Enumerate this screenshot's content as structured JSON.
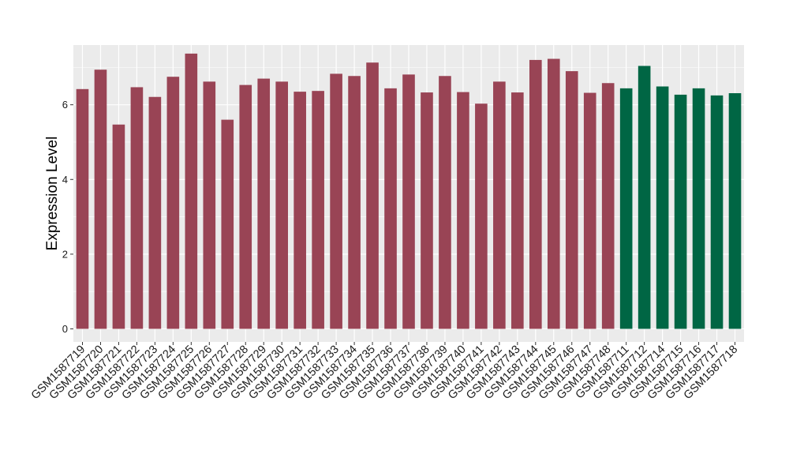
{
  "chart_data": {
    "type": "bar",
    "ylabel": "Expression Level",
    "xlabel": "",
    "ylim": [
      -0.35,
      7.6
    ],
    "yticks": [
      0,
      2,
      4,
      6
    ],
    "ytick_labels": [
      "0",
      "2",
      "4",
      "6"
    ],
    "grid": true,
    "legend": "none",
    "colors": {
      "group_a": "#994455",
      "group_b": "#006644",
      "panel": "#ebebeb",
      "grid": "#ffffff"
    },
    "categories": [
      "GSM1587719",
      "GSM1587720",
      "GSM1587721",
      "GSM1587722",
      "GSM1587723",
      "GSM1587724",
      "GSM1587725",
      "GSM1587726",
      "GSM1587727",
      "GSM1587728",
      "GSM1587729",
      "GSM1587730",
      "GSM1587731",
      "GSM1587732",
      "GSM1587733",
      "GSM1587734",
      "GSM1587735",
      "GSM1587736",
      "GSM1587737",
      "GSM1587738",
      "GSM1587739",
      "GSM1587740",
      "GSM1587741",
      "GSM1587742",
      "GSM1587743",
      "GSM1587744",
      "GSM1587745",
      "GSM1587746",
      "GSM1587747",
      "GSM1587748",
      "GSM1587711",
      "GSM1587712",
      "GSM1587714",
      "GSM1587715",
      "GSM1587716",
      "GSM1587717",
      "GSM1587718"
    ],
    "values": [
      6.42,
      6.94,
      5.47,
      6.47,
      6.21,
      6.75,
      7.37,
      6.62,
      5.6,
      6.53,
      6.7,
      6.62,
      6.35,
      6.37,
      6.83,
      6.77,
      7.13,
      6.44,
      6.81,
      6.33,
      6.77,
      6.34,
      6.03,
      6.62,
      6.33,
      7.2,
      7.23,
      6.9,
      6.32,
      6.58,
      6.44,
      7.04,
      6.49,
      6.27,
      6.44,
      6.25,
      6.31
    ],
    "groups": [
      "a",
      "a",
      "a",
      "a",
      "a",
      "a",
      "a",
      "a",
      "a",
      "a",
      "a",
      "a",
      "a",
      "a",
      "a",
      "a",
      "a",
      "a",
      "a",
      "a",
      "a",
      "a",
      "a",
      "a",
      "a",
      "a",
      "a",
      "a",
      "a",
      "a",
      "b",
      "b",
      "b",
      "b",
      "b",
      "b",
      "b"
    ]
  }
}
